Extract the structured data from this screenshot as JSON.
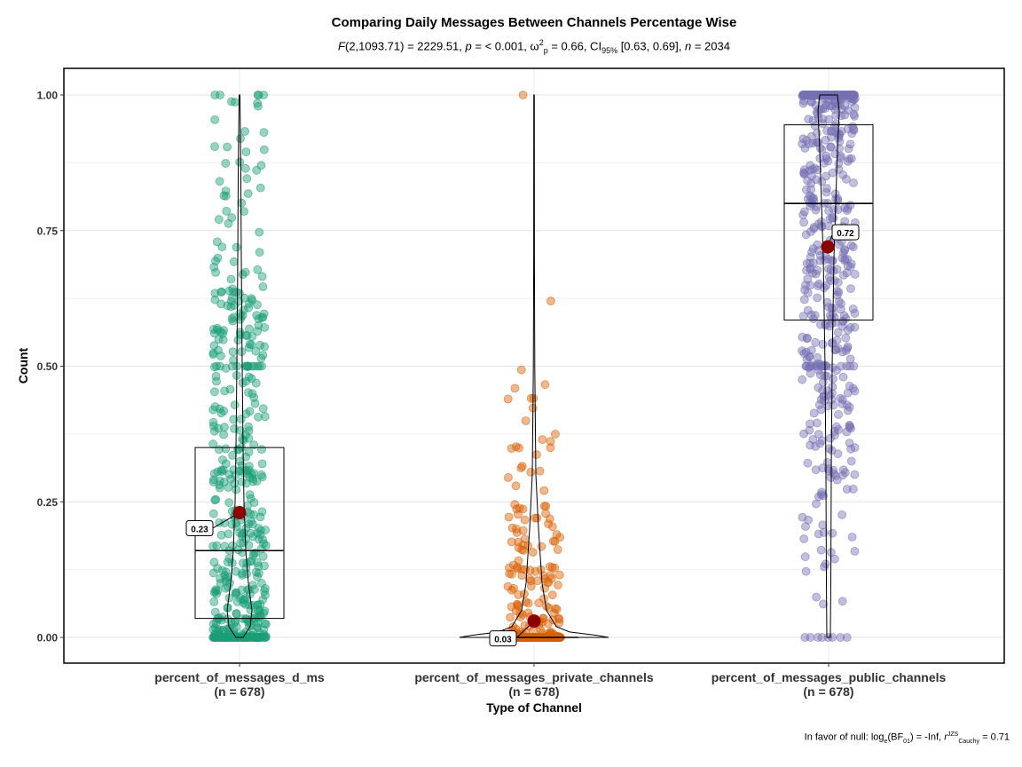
{
  "chart_data": {
    "type": "violin-box-scatter",
    "title": "Comparing Daily Messages Between Channels Percentage Wise",
    "subtitle": {
      "f_label": "F",
      "f_args": "(2,1093.71) = 2229.51, ",
      "p_label": "p",
      "p_value": " = < 0.001, ",
      "omega": "ω",
      "omega_sup": "2",
      "omega_sub": "p",
      "omega_value": " = 0.66, CI",
      "ci_sub": "95%",
      "ci_value": " [0.63, 0.69], ",
      "n_label": "n",
      "n_value": " = 2034"
    },
    "xlabel": "Type of Channel",
    "ylabel": "Count",
    "ylim": [
      0,
      1
    ],
    "yticks": [
      "0.00",
      "0.25",
      "0.50",
      "0.75",
      "1.00"
    ],
    "grid": true,
    "groups": [
      {
        "name": "percent_of_messages_d_ms",
        "n_label": "(n = 678)",
        "color": "#1b9e77",
        "mean": 0.23,
        "mean_label": "0.23",
        "box": {
          "q1": 0.035,
          "median": 0.16,
          "q3": 0.35
        }
      },
      {
        "name": "percent_of_messages_private_channels",
        "n_label": "(n = 678)",
        "color": "#d95f02",
        "mean": 0.03,
        "mean_label": "0.03",
        "box": {
          "q1": 0.0,
          "median": 0.0,
          "q3": 0.0
        }
      },
      {
        "name": "percent_of_messages_public_channels",
        "n_label": "(n = 678)",
        "color": "#7570b3",
        "mean": 0.72,
        "mean_label": "0.72",
        "box": {
          "q1": 0.585,
          "median": 0.8,
          "q3": 0.945
        }
      }
    ],
    "mean_marker_color": "#8b0000",
    "caption": {
      "prefix": "In favor of null: log",
      "log_sub": "e",
      "bf": "(BF",
      "bf_sub": "01",
      "mid": ") = -Inf, ",
      "r": "r",
      "r_sup": "JZS",
      "r_sub": "Cauchy",
      "suffix": " = 0.71"
    }
  }
}
